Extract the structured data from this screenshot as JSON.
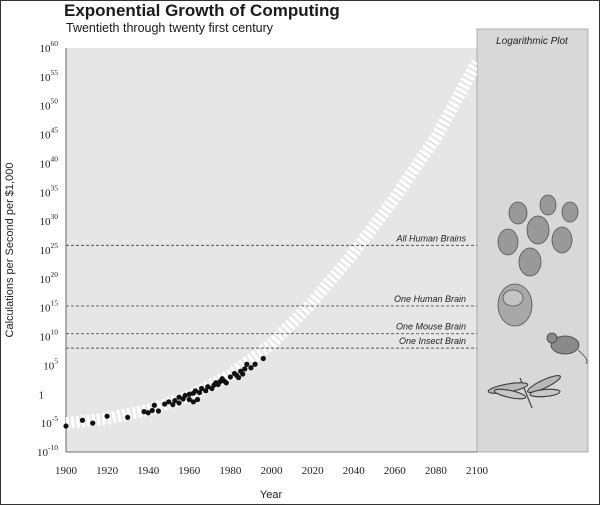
{
  "chart_data": {
    "type": "scatter",
    "title": "Exponential Growth of Computing",
    "subtitle": "Twentieth through twenty first century",
    "xlabel": "Year",
    "ylabel": "Calculations per Second per $1,000",
    "xlim": [
      1900,
      2100
    ],
    "ylim_exponent": [
      -10,
      60
    ],
    "y_scale": "log10",
    "grid": false,
    "x_ticks": [
      "1900",
      "1920",
      "1940",
      "1960",
      "1980",
      "2000",
      "2020",
      "2040",
      "2060",
      "2080",
      "2100"
    ],
    "y_ticks": [
      {
        "base": "10",
        "exp": "-10"
      },
      {
        "base": "10",
        "exp": "-5"
      },
      {
        "base": "1",
        "exp": ""
      },
      {
        "base": "10",
        "exp": "5"
      },
      {
        "base": "10",
        "exp": "10"
      },
      {
        "base": "10",
        "exp": "15"
      },
      {
        "base": "10",
        "exp": "20"
      },
      {
        "base": "10",
        "exp": "25"
      },
      {
        "base": "10",
        "exp": "30"
      },
      {
        "base": "10",
        "exp": "35"
      },
      {
        "base": "10",
        "exp": "40"
      },
      {
        "base": "10",
        "exp": "45"
      },
      {
        "base": "10",
        "exp": "50"
      },
      {
        "base": "10",
        "exp": "55"
      },
      {
        "base": "10",
        "exp": "60"
      }
    ],
    "points": [
      [
        1900,
        -5.5
      ],
      [
        1908,
        -4.5
      ],
      [
        1913,
        -5.0
      ],
      [
        1920,
        -3.8
      ],
      [
        1930,
        -4.0
      ],
      [
        1938,
        -3.0
      ],
      [
        1940,
        -3.2
      ],
      [
        1942,
        -2.8
      ],
      [
        1943,
        -1.9
      ],
      [
        1945,
        -2.9
      ],
      [
        1948,
        -1.7
      ],
      [
        1950,
        -1.3
      ],
      [
        1952,
        -1.8
      ],
      [
        1953,
        -1.1
      ],
      [
        1955,
        -0.5
      ],
      [
        1955,
        -1.5
      ],
      [
        1957,
        -0.8
      ],
      [
        1958,
        -0.2
      ],
      [
        1960,
        -0.9
      ],
      [
        1960,
        0.0
      ],
      [
        1962,
        -1.3
      ],
      [
        1962,
        0.2
      ],
      [
        1963,
        0.6
      ],
      [
        1964,
        -0.9
      ],
      [
        1965,
        0.3
      ],
      [
        1966,
        1.0
      ],
      [
        1968,
        0.6
      ],
      [
        1969,
        1.3
      ],
      [
        1971,
        1.0
      ],
      [
        1972,
        1.6
      ],
      [
        1973,
        2.0
      ],
      [
        1974,
        1.7
      ],
      [
        1975,
        2.2
      ],
      [
        1976,
        2.7
      ],
      [
        1977,
        2.3
      ],
      [
        1978,
        2.0
      ],
      [
        1980,
        3.0
      ],
      [
        1982,
        3.6
      ],
      [
        1983,
        3.3
      ],
      [
        1984,
        2.9
      ],
      [
        1985,
        4.0
      ],
      [
        1986,
        3.5
      ],
      [
        1987,
        4.4
      ],
      [
        1988,
        5.2
      ],
      [
        1990,
        4.6
      ],
      [
        1992,
        5.2
      ],
      [
        1996,
        6.2
      ]
    ],
    "projection": {
      "x": [
        1900,
        1920,
        1940,
        1960,
        1980,
        2000,
        2020,
        2040,
        2060,
        2080,
        2090,
        2100
      ],
      "y": [
        -5.0,
        -4.2,
        -2.7,
        -0.3,
        3.4,
        8.7,
        16.0,
        24.5,
        34.0,
        44.5,
        51.0,
        57.5
      ]
    },
    "reference_lines": [
      {
        "label": "All Human Brains",
        "y": 25.8
      },
      {
        "label": "One Human Brain",
        "y": 15.3
      },
      {
        "label": "One Mouse Brain",
        "y": 10.5
      },
      {
        "label": "One Insect Brain",
        "y": 8.0
      }
    ],
    "panel_title": "Logarithmic Plot",
    "colors": {
      "plot_bg": "#e6e6e6",
      "panel_bg": "#d8d8d8",
      "points": "#111111",
      "projection": "#ffffff",
      "ref_line": "#555555"
    }
  }
}
